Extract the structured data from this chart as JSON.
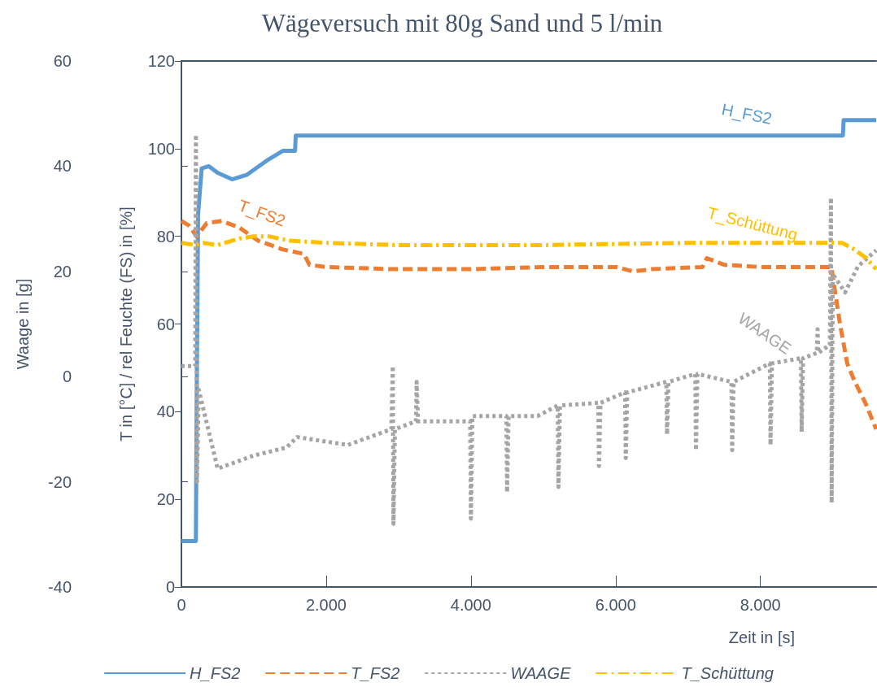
{
  "chart_data": {
    "type": "line",
    "title": "Wägeversuch mit 80g Sand und 5 l/min",
    "xlabel": "Zeit in [s]",
    "ylabel": "T in [°C] / rel Feuchte (FS) in [%]",
    "y2label": "Waage in [g]",
    "xlim": [
      0,
      9600
    ],
    "xticks": [
      0,
      {
        "value": 2000,
        "label": "2.000"
      },
      {
        "value": 4000,
        "label": "4.000"
      },
      {
        "value": 6000,
        "label": "6.000"
      },
      {
        "value": 8000,
        "label": "8.000"
      }
    ],
    "ylim": [
      0,
      120
    ],
    "yticks": [
      0,
      20,
      40,
      60,
      80,
      100,
      120
    ],
    "y2lim": [
      -40,
      60
    ],
    "y2ticks": [
      -40,
      -20,
      0,
      20,
      40,
      60
    ],
    "grid": false,
    "legend": "bottom",
    "marker": "none",
    "series": [
      {
        "name": "H_FS2",
        "color": "#5b9bd5",
        "line_style": "solid",
        "x": [
          0,
          200,
          210,
          230,
          280,
          380,
          500,
          700,
          900,
          1200,
          1400,
          1570,
          1580,
          9140,
          9150,
          9600
        ],
        "values": [
          10.5,
          10.5,
          40,
          85,
          95.5,
          96,
          94.5,
          93,
          94,
          97.5,
          99.5,
          99.5,
          103,
          103,
          106.5,
          106.5
        ]
      },
      {
        "name": "T_FS2",
        "color": "#ed7d31",
        "line_style": "dashed",
        "x": [
          0,
          100,
          210,
          350,
          560,
          800,
          1060,
          1400,
          1690,
          1770,
          2000,
          2930,
          3500,
          4000,
          5000,
          6000,
          6240,
          6500,
          7200,
          7260,
          7500,
          8000,
          8980,
          9100,
          9200,
          9300,
          9450,
          9600
        ],
        "values": [
          83.5,
          82.5,
          80,
          83,
          83.5,
          82,
          79,
          77,
          76,
          73.5,
          73,
          72.5,
          72.5,
          72.5,
          73,
          73,
          72,
          72.5,
          73,
          75,
          73.5,
          73,
          73,
          60,
          51,
          47,
          42,
          36
        ]
      },
      {
        "name": "WAAGE",
        "color": "#a5a5a5",
        "line_style": "dotted",
        "axis": "y2",
        "x": [
          0,
          190,
          200,
          215,
          240,
          500,
          1000,
          1450,
          1600,
          2300,
          2900,
          2920,
          2930,
          2950,
          3240,
          3250,
          3270,
          3990,
          4000,
          4020,
          4490,
          4500,
          4520,
          4920,
          5200,
          5210,
          5230,
          5760,
          5770,
          5790,
          6130,
          6140,
          6160,
          6700,
          6710,
          6730,
          7100,
          7110,
          7130,
          7600,
          7610,
          7630,
          8130,
          8140,
          8160,
          8560,
          8570,
          8590,
          8780,
          8790,
          8800,
          8960,
          8975,
          8985,
          9000,
          9170,
          9350,
          9600
        ],
        "values": [
          2,
          2,
          46,
          -20,
          -2.5,
          -17.5,
          -15,
          -13.5,
          -11.5,
          -13,
          -10,
          2,
          -28,
          -10,
          -8.5,
          -1,
          -8.5,
          -8.5,
          -27,
          -7.5,
          -7.5,
          -22,
          -7.5,
          -7.5,
          -5.5,
          -21,
          -5.5,
          -5,
          -17,
          -5,
          -3,
          -15.5,
          -3,
          -1,
          -11,
          -1,
          0.5,
          -14,
          0.5,
          -1,
          -14,
          -1,
          2.5,
          -13,
          2.5,
          3.5,
          -10.5,
          3.5,
          4.5,
          9,
          4.5,
          6,
          34,
          -24,
          19.5,
          16,
          21,
          24
        ]
      },
      {
        "name": "T_Schüttung",
        "color": "#ffc000",
        "line_style": "dashdot",
        "x": [
          0,
          200,
          300,
          500,
          800,
          1000,
          1200,
          1500,
          2000,
          3000,
          5000,
          7000,
          8000,
          9000,
          9130,
          9300,
          9465,
          9600
        ],
        "values": [
          78.5,
          78,
          78.5,
          78,
          79.5,
          80,
          80,
          79,
          78.5,
          78,
          78,
          78.5,
          78.5,
          78.5,
          78.5,
          77,
          75,
          72.5
        ]
      }
    ],
    "annotations": [
      "H_FS2",
      "T_FS2",
      "WAAGE",
      "T_Schüttung"
    ]
  }
}
